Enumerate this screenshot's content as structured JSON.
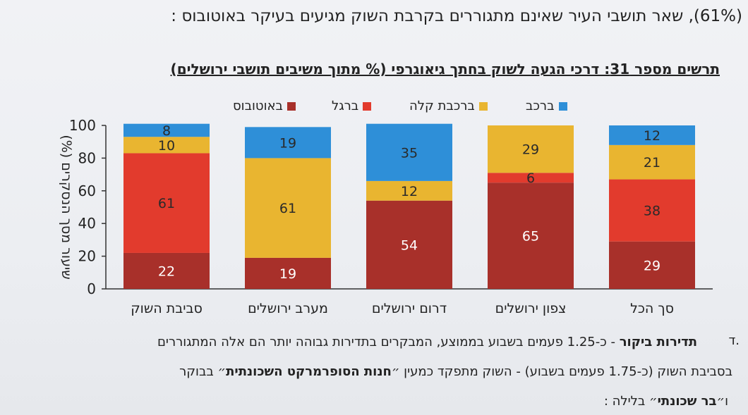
{
  "header": {
    "top_line": "(61%), שאר תושבי העיר שאינם מתגוררים בקרבת השוק מגיעים בעיקר באוטובוס :",
    "figure_title": "תרשים מספר 31: דרכי הגעה לשוק בחתך גיאוגרפי (% מתוך משיבים תושבי ירושלים)"
  },
  "chart_data": {
    "type": "bar",
    "stacked": true,
    "title": "תרשים מספר 31: דרכי הגעה לשוק בחתך גיאוגרפי (% מתוך משיבים תושבי ירושלים)",
    "ylabel": "שיעור מסך הנסקרים (%)",
    "ylim": [
      0,
      100
    ],
    "yticks": [
      0,
      20,
      40,
      60,
      80,
      100
    ],
    "legend_position": "top",
    "categories": [
      "סביבת השוק",
      "מערב ירושלים",
      "דרום ירושלים",
      "צפון ירושלים",
      "סך הכל"
    ],
    "series": [
      {
        "name": "באוטובוס",
        "color": "#a8302a",
        "values": [
          22,
          19,
          54,
          65,
          29
        ]
      },
      {
        "name": "ברגל",
        "color": "#e23b2d",
        "values": [
          61,
          0,
          0,
          6,
          38
        ]
      },
      {
        "name": "ברכבת קלה",
        "color": "#e9b530",
        "values": [
          10,
          61,
          12,
          29,
          21
        ]
      },
      {
        "name": "ברכב",
        "color": "#2e8fd8",
        "values": [
          8,
          19,
          35,
          0,
          12
        ]
      }
    ],
    "data_labels": [
      [
        "22",
        "19",
        "54",
        "65",
        "29"
      ],
      [
        "61",
        "",
        "",
        "6",
        "38"
      ],
      [
        "10",
        "61",
        "12",
        "29",
        "21"
      ],
      [
        "8",
        "19",
        "35",
        "",
        "12"
      ]
    ]
  },
  "body_text": {
    "marker": "ד.",
    "para1_bold": "תדירות ביקור",
    "para1_rest": " - כ-1.25 פעמים בשבוע בממוצע, המבקרים בתדירות גבוהה יותר הם אלה המתגוררים",
    "para2_start": "בסביבת השוק (כ-1.75 פעמים בשבוע) - השוק מתפקד כמעין ״",
    "para2_bold": "חנות הסופרמרקט השכונתית",
    "para2_end": "״ בבוקר",
    "para3_start": "ו״",
    "para3_bold": "בר שכונתי",
    "para3_end": "״ בלילה :"
  }
}
